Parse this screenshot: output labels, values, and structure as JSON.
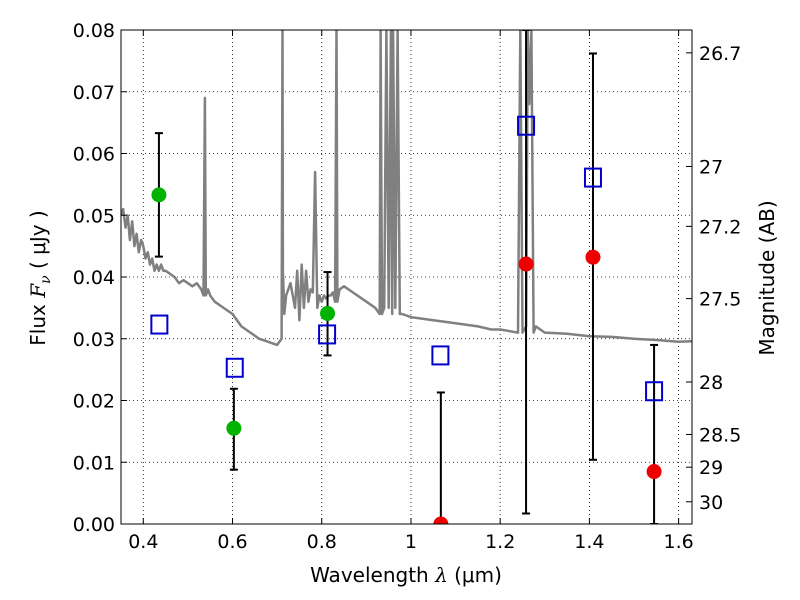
{
  "chart_data": {
    "type": "scatter",
    "xlabel_prefix": "Wavelength",
    "xlabel_symbol": "λ",
    "xlabel_unit": "(μm)",
    "ylabel_prefix": "Flux",
    "ylabel_symbol": "F",
    "ylabel_subscript": "ν",
    "ylabel_unit": "( μJy )",
    "y2label": "Magnitude (AB)",
    "xlim": [
      0.35,
      1.63
    ],
    "ylim": [
      0.0,
      0.08
    ],
    "xticks": [
      0.4,
      0.6,
      0.8,
      1.0,
      1.2,
      1.4,
      1.6
    ],
    "xtick_labels": [
      "0.4",
      "0.6",
      "0.8",
      "1",
      "1.2",
      "1.4",
      "1.6"
    ],
    "yticks": [
      0.0,
      0.01,
      0.02,
      0.03,
      0.04,
      0.05,
      0.06,
      0.07,
      0.08
    ],
    "ytick_labels": [
      "0.00",
      "0.01",
      "0.02",
      "0.03",
      "0.04",
      "0.05",
      "0.06",
      "0.07",
      "0.08"
    ],
    "mag_ticks": [
      {
        "label": "26.7",
        "flux": 0.0763
      },
      {
        "label": "27",
        "flux": 0.0579
      },
      {
        "label": "27.2",
        "flux": 0.0482
      },
      {
        "label": "27.5",
        "flux": 0.0365
      },
      {
        "label": "28",
        "flux": 0.023
      },
      {
        "label": "28.5",
        "flux": 0.0145
      },
      {
        "label": "29",
        "flux": 0.0092
      },
      {
        "label": "30",
        "flux": 0.0036
      }
    ],
    "grid": true,
    "colors": {
      "model": "#808080",
      "detection": "#00b300",
      "nondetection": "#ee0000",
      "model_photometry": "#0000cc",
      "errorbar": "#000000"
    },
    "model_spectrum": {
      "x": [
        0.35,
        0.355,
        0.36,
        0.365,
        0.37,
        0.375,
        0.38,
        0.385,
        0.39,
        0.395,
        0.4,
        0.405,
        0.41,
        0.415,
        0.42,
        0.425,
        0.43,
        0.435,
        0.44,
        0.445,
        0.45,
        0.46,
        0.47,
        0.48,
        0.49,
        0.5,
        0.51,
        0.52,
        0.53,
        0.535,
        0.538,
        0.54,
        0.545,
        0.55,
        0.56,
        0.58,
        0.6,
        0.62,
        0.64,
        0.66,
        0.68,
        0.7,
        0.71,
        0.712,
        0.713,
        0.716,
        0.72,
        0.73,
        0.74,
        0.745,
        0.75,
        0.755,
        0.76,
        0.765,
        0.77,
        0.775,
        0.78,
        0.785,
        0.79,
        0.795,
        0.8,
        0.805,
        0.81,
        0.815,
        0.82,
        0.825,
        0.83,
        0.833,
        0.835,
        0.84,
        0.85,
        0.86,
        0.88,
        0.9,
        0.92,
        0.93,
        0.932,
        0.935,
        0.94,
        0.945,
        0.95,
        0.955,
        0.958,
        0.96,
        0.965,
        0.97,
        0.975,
        0.98,
        1.0,
        1.05,
        1.1,
        1.15,
        1.18,
        1.2,
        1.24,
        1.245,
        1.25,
        1.258,
        1.262,
        1.265,
        1.27,
        1.275,
        1.28,
        1.29,
        1.3,
        1.35,
        1.4,
        1.45,
        1.5,
        1.55,
        1.6,
        1.63
      ],
      "y": [
        0.05,
        0.051,
        0.048,
        0.05,
        0.046,
        0.049,
        0.045,
        0.047,
        0.044,
        0.046,
        0.045,
        0.043,
        0.044,
        0.042,
        0.043,
        0.041,
        0.042,
        0.041,
        0.042,
        0.041,
        0.041,
        0.0405,
        0.04,
        0.039,
        0.0395,
        0.039,
        0.0385,
        0.039,
        0.038,
        0.037,
        0.069,
        0.037,
        0.038,
        0.037,
        0.036,
        0.035,
        0.034,
        0.032,
        0.031,
        0.03,
        0.0295,
        0.029,
        0.03,
        0.08,
        0.041,
        0.034,
        0.037,
        0.039,
        0.035,
        0.041,
        0.033,
        0.042,
        0.035,
        0.041,
        0.036,
        0.038,
        0.0375,
        0.057,
        0.035,
        0.037,
        0.036,
        0.037,
        0.0365,
        0.037,
        0.037,
        0.0375,
        0.036,
        0.08,
        0.036,
        0.038,
        0.0385,
        0.038,
        0.037,
        0.036,
        0.035,
        0.034,
        0.08,
        0.034,
        0.035,
        0.08,
        0.035,
        0.08,
        0.034,
        0.08,
        0.035,
        0.08,
        0.034,
        0.034,
        0.0335,
        0.033,
        0.0325,
        0.032,
        0.0315,
        0.0315,
        0.031,
        0.08,
        0.031,
        0.032,
        0.08,
        0.068,
        0.08,
        0.031,
        0.032,
        0.0315,
        0.031,
        0.0308,
        0.0304,
        0.0303,
        0.03,
        0.0298,
        0.0295,
        0.0296
      ]
    },
    "detections": [
      {
        "x": 0.435,
        "y": 0.0533,
        "ylo": 0.0433,
        "yhi": 0.0633
      },
      {
        "x": 0.603,
        "y": 0.0155,
        "ylo": 0.0088,
        "yhi": 0.0219
      },
      {
        "x": 0.813,
        "y": 0.0341,
        "ylo": 0.0273,
        "yhi": 0.0408
      }
    ],
    "nondetections": [
      {
        "x": 1.067,
        "y": 0.0,
        "ylo": 0.0,
        "yhi": 0.0213
      },
      {
        "x": 1.258,
        "y": 0.0421,
        "ylo": 0.0017,
        "yhi": 0.08
      },
      {
        "x": 1.408,
        "y": 0.0432,
        "ylo": 0.0104,
        "yhi": 0.0762
      },
      {
        "x": 1.545,
        "y": 0.0085,
        "ylo": 0.0,
        "yhi": 0.029
      }
    ],
    "model_photometry": [
      {
        "x": 0.436,
        "y": 0.0323
      },
      {
        "x": 0.605,
        "y": 0.0253
      },
      {
        "x": 0.812,
        "y": 0.0307
      },
      {
        "x": 1.066,
        "y": 0.0273
      },
      {
        "x": 1.258,
        "y": 0.0645
      },
      {
        "x": 1.408,
        "y": 0.0561
      },
      {
        "x": 1.545,
        "y": 0.0215
      }
    ]
  }
}
